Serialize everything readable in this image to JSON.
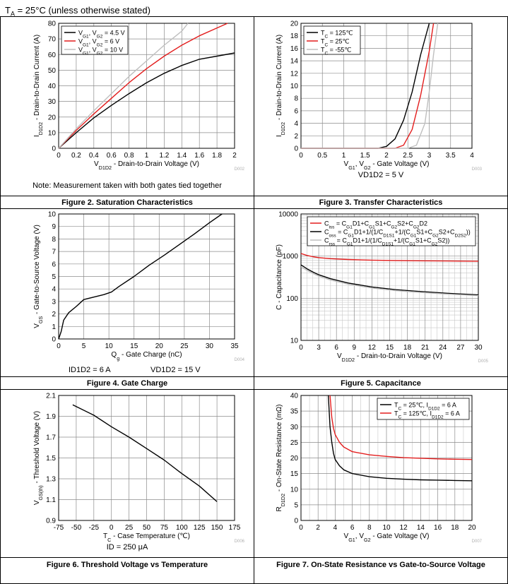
{
  "header": {
    "prefix": "T",
    "sub": "A",
    "rest": " = 25°C (unless otherwise stated)"
  },
  "colors": {
    "black": "#000000",
    "red": "#e31d1d",
    "gray": "#bfbfbf",
    "grid": "#8c8c8c"
  },
  "figures": {
    "fig2": {
      "caption": "Figure 2. Saturation Characteristics",
      "note": "Note: Measurement taken with both gates tied together"
    },
    "fig3": {
      "caption": "Figure 3. Transfer Characteristics",
      "cond1": "VD1D2 = 5 V"
    },
    "fig4": {
      "caption": "Figure 4. Gate Charge",
      "cond1": "ID1D2 = 6 A",
      "cond2": "VD1D2 = 15 V"
    },
    "fig5": {
      "caption": "Figure 5. Capacitance"
    },
    "fig6": {
      "caption": "Figure 6. Threshold Voltage vs Temperature",
      "cond1": "ID = 250 μA"
    },
    "fig7": {
      "caption": "Figure 7. On-State Resistance vs Gate-to-Source Voltage"
    }
  },
  "chart_data": [
    {
      "id": "fig2",
      "type": "line",
      "code": "D002",
      "xlabel": "VD1D2 - Drain-to-Drain Voltage (V)",
      "ylabel": "ID1D2 - Drain-to-Drain Current (A)",
      "xlim": [
        0,
        2
      ],
      "ylim": [
        0,
        80
      ],
      "xticks": [
        0,
        0.2,
        0.4,
        0.6,
        0.8,
        1,
        1.2,
        1.4,
        1.6,
        1.8,
        2
      ],
      "xtick_labels": [
        "0",
        "0.2",
        "0.4",
        "0.6",
        "0.8",
        "1",
        "1.2",
        "1.4",
        "1.6",
        "1.8",
        "2"
      ],
      "yticks": [
        0,
        10,
        20,
        30,
        40,
        50,
        60,
        70,
        80
      ],
      "ytick_labels": [
        "0",
        "10",
        "20",
        "30",
        "40",
        "50",
        "60",
        "70",
        "80"
      ],
      "legend": "top-left",
      "series": [
        {
          "name": "VG1, VG2 = 4.5 V",
          "color": "black",
          "x": [
            0,
            0.2,
            0.4,
            0.6,
            0.8,
            1.0,
            1.2,
            1.4,
            1.6,
            1.8,
            2.0
          ],
          "y": [
            0,
            10,
            19.5,
            27.5,
            35,
            42,
            48,
            53,
            57,
            59,
            61
          ]
        },
        {
          "name": "VG1, VG2 = 6 V",
          "color": "red",
          "x": [
            0,
            0.2,
            0.4,
            0.6,
            0.8,
            1.0,
            1.2,
            1.4,
            1.6,
            1.8,
            1.92
          ],
          "y": [
            0,
            11.5,
            22,
            32,
            42,
            51,
            59,
            66,
            72,
            77,
            80
          ]
        },
        {
          "name": "VG1, VG2 = 10 V",
          "color": "gray",
          "x": [
            0,
            0.2,
            0.4,
            0.6,
            0.8,
            1.0,
            1.2,
            1.4,
            1.47
          ],
          "y": [
            0,
            12.5,
            24,
            35,
            46,
            56,
            66,
            75,
            80
          ]
        }
      ]
    },
    {
      "id": "fig3",
      "type": "line",
      "code": "D003",
      "xlabel": "VG1, VG2 - Gate Voltage (V)",
      "ylabel": "ID1D2 - Drain-to-Drain Current (A)",
      "xlim": [
        0,
        4
      ],
      "ylim": [
        0,
        20
      ],
      "xticks": [
        0,
        0.5,
        1,
        1.5,
        2,
        2.5,
        3,
        3.5,
        4
      ],
      "xtick_labels": [
        "0",
        "0.5",
        "1",
        "1.5",
        "2",
        "2.5",
        "3",
        "3.5",
        "4"
      ],
      "yticks": [
        0,
        2,
        4,
        6,
        8,
        10,
        12,
        14,
        16,
        18,
        20
      ],
      "ytick_labels": [
        "0",
        "2",
        "4",
        "6",
        "8",
        "10",
        "12",
        "14",
        "16",
        "18",
        "20"
      ],
      "legend": "top-left",
      "series": [
        {
          "name": "TC = 125℃",
          "color": "black",
          "x": [
            0,
            1.8,
            2.0,
            2.2,
            2.4,
            2.6,
            2.8,
            3.0
          ],
          "y": [
            0,
            0,
            0.3,
            1.5,
            4.5,
            9,
            15,
            20
          ]
        },
        {
          "name": "TC = 25℃",
          "color": "red",
          "x": [
            0,
            2.2,
            2.4,
            2.6,
            2.8,
            3.0,
            3.1
          ],
          "y": [
            0,
            0,
            0.5,
            3,
            8.5,
            15.5,
            20
          ]
        },
        {
          "name": "TC = -55℃",
          "color": "gray",
          "x": [
            0,
            2.5,
            2.7,
            2.9,
            3.0,
            3.1,
            3.2
          ],
          "y": [
            0,
            0,
            0.5,
            4,
            9,
            15,
            20
          ]
        }
      ]
    },
    {
      "id": "fig4",
      "type": "line",
      "code": "D004",
      "xlabel": "Qg - Gate Charge (nC)",
      "ylabel": "VGS - Gate-to-Source Voltage (V)",
      "xlim": [
        0,
        35
      ],
      "ylim": [
        0,
        10
      ],
      "xticks": [
        0,
        5,
        10,
        15,
        20,
        25,
        30,
        35
      ],
      "xtick_labels": [
        "0",
        "5",
        "10",
        "15",
        "20",
        "25",
        "30",
        "35"
      ],
      "yticks": [
        0,
        1,
        2,
        3,
        4,
        5,
        6,
        7,
        8,
        9,
        10
      ],
      "ytick_labels": [
        "0",
        "1",
        "2",
        "3",
        "4",
        "5",
        "6",
        "7",
        "8",
        "9",
        "10"
      ],
      "legend": "none",
      "series": [
        {
          "name": "VGS",
          "color": "black",
          "x": [
            0,
            0.5,
            1.0,
            2.0,
            3.5,
            5.0,
            7.0,
            9.0,
            10.5,
            12.0,
            15.0,
            18.0,
            21.0,
            24.0,
            27.0,
            30.0,
            32.5
          ],
          "y": [
            0,
            0.6,
            1.5,
            2.1,
            2.6,
            3.15,
            3.35,
            3.55,
            3.75,
            4.2,
            5.0,
            5.9,
            6.7,
            7.55,
            8.4,
            9.3,
            10.0
          ]
        }
      ]
    },
    {
      "id": "fig5",
      "type": "line",
      "code": "D005",
      "yscale": "log",
      "xlabel": "VD1D2 - Drain-to-Drain Voltage (V)",
      "ylabel": "C - Capacitance (pF)",
      "xlim": [
        0,
        30
      ],
      "ylim": [
        10,
        10000
      ],
      "xticks": [
        0,
        3,
        6,
        9,
        12,
        15,
        18,
        21,
        24,
        27,
        30
      ],
      "xtick_labels": [
        "0",
        "3",
        "6",
        "9",
        "12",
        "15",
        "18",
        "21",
        "24",
        "27",
        "30"
      ],
      "yticks": [
        10,
        100,
        1000,
        10000
      ],
      "ytick_labels": [
        "10",
        "100",
        "1000",
        "10000"
      ],
      "legend": "top-right",
      "series": [
        {
          "name": "Ciss = CG1D1+CG1S1+CG2S2+CG2D2",
          "color": "red",
          "x": [
            0,
            1,
            2,
            3,
            5,
            8,
            12,
            16,
            20,
            25,
            30
          ],
          "y": [
            1150,
            1040,
            970,
            920,
            870,
            830,
            800,
            785,
            775,
            765,
            755
          ]
        },
        {
          "name": "Coss = CG1D1+1/(1/CD1S1+1/(CG1S1+CG2S2+CD2S2))",
          "color": "black",
          "x": [
            0,
            1,
            2,
            3,
            5,
            8,
            12,
            16,
            20,
            25,
            30
          ],
          "y": [
            620,
            500,
            420,
            360,
            290,
            230,
            185,
            160,
            145,
            130,
            120
          ]
        },
        {
          "name": "Crss = CG1D1+1/(1/CD1S1+1/(CG1S1+CG2S2))",
          "color": "gray",
          "x": [
            0,
            1,
            2,
            3,
            5,
            8,
            12,
            16,
            20,
            25,
            30
          ],
          "y": [
            560,
            460,
            390,
            335,
            270,
            215,
            175,
            152,
            138,
            125,
            115
          ]
        }
      ]
    },
    {
      "id": "fig6",
      "type": "line",
      "code": "D006",
      "xlabel": "TC - Case Temperature (℃)",
      "ylabel": "VGS(th) - Threshold Voltage (V)",
      "xlim": [
        -75,
        175
      ],
      "ylim": [
        0.9,
        2.1
      ],
      "xticks": [
        -75,
        -50,
        -25,
        0,
        25,
        50,
        75,
        100,
        125,
        150,
        175
      ],
      "xtick_labels": [
        "-75",
        "-50",
        "-25",
        "0",
        "25",
        "50",
        "75",
        "100",
        "125",
        "150",
        "175"
      ],
      "yticks": [
        0.9,
        1.1,
        1.3,
        1.5,
        1.7,
        1.9,
        2.1
      ],
      "ytick_labels": [
        "0.9",
        "1.1",
        "1.3",
        "1.5",
        "1.7",
        "1.9",
        "2.1"
      ],
      "legend": "none",
      "series": [
        {
          "name": "VGS(th)",
          "color": "black",
          "x": [
            -55,
            -25,
            0,
            25,
            50,
            75,
            100,
            125,
            150
          ],
          "y": [
            2.01,
            1.91,
            1.8,
            1.7,
            1.59,
            1.48,
            1.35,
            1.23,
            1.08
          ]
        }
      ]
    },
    {
      "id": "fig7",
      "type": "line",
      "code": "D007",
      "xlabel": "VG1, VG2 - Gate Voltage (V)",
      "ylabel": "RD1D2 - On-State Resistance (mΩ)",
      "xlim": [
        0,
        20
      ],
      "ylim": [
        0,
        40
      ],
      "xticks": [
        0,
        2,
        4,
        6,
        8,
        10,
        12,
        14,
        16,
        18,
        20
      ],
      "xtick_labels": [
        "0",
        "2",
        "4",
        "6",
        "8",
        "10",
        "12",
        "14",
        "16",
        "18",
        "20"
      ],
      "yticks": [
        0,
        5,
        10,
        15,
        20,
        25,
        30,
        35,
        40
      ],
      "ytick_labels": [
        "0",
        "5",
        "10",
        "15",
        "20",
        "25",
        "30",
        "35",
        "40"
      ],
      "legend": "top-right",
      "series": [
        {
          "name": "TC = 25℃, ID1D2 = 6 A",
          "color": "black",
          "x": [
            3.2,
            3.4,
            3.6,
            3.8,
            4.0,
            4.5,
            5.0,
            6.0,
            8.0,
            10,
            12,
            14,
            16,
            18,
            20
          ],
          "y": [
            40,
            30,
            25,
            21.5,
            19.5,
            17.5,
            16.2,
            15,
            14,
            13.5,
            13.2,
            13,
            12.9,
            12.8,
            12.7
          ]
        },
        {
          "name": "TC = 125℃, ID1D2 = 6 A",
          "color": "red",
          "x": [
            3.4,
            3.6,
            3.8,
            4.0,
            4.5,
            5.0,
            6.0,
            8.0,
            10,
            12,
            14,
            16,
            18,
            20
          ],
          "y": [
            40,
            33,
            29.5,
            27.5,
            25,
            23.5,
            22,
            21,
            20.5,
            20.1,
            19.9,
            19.7,
            19.6,
            19.5
          ]
        }
      ]
    }
  ]
}
